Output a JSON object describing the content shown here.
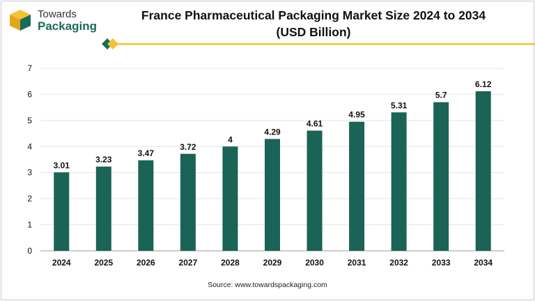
{
  "header": {
    "logo_line1": "Towards",
    "logo_line2": "Packaging",
    "title_line1": "France Pharmaceutical Packaging Market Size 2024 to 2034",
    "title_line2": "(USD Billion)"
  },
  "source": "Source: www.towardspackaging.com",
  "colors": {
    "bar": "#1b6356",
    "brand_green": "#1b6b58",
    "brand_gold": "#f2c230",
    "grid": "#e3e3e3",
    "axis": "#999999"
  },
  "chart_data": {
    "type": "bar",
    "title": "France Pharmaceutical Packaging Market Size 2024 to 2034 (USD Billion)",
    "categories": [
      "2024",
      "2025",
      "2026",
      "2027",
      "2028",
      "2029",
      "2030",
      "2031",
      "2032",
      "2033",
      "2034"
    ],
    "values": [
      3.01,
      3.23,
      3.47,
      3.72,
      4,
      4.29,
      4.61,
      4.95,
      5.31,
      5.7,
      6.12
    ],
    "value_labels": [
      "3.01",
      "3.23",
      "3.47",
      "3.72",
      "4",
      "4.29",
      "4.61",
      "4.95",
      "5.31",
      "5.7",
      "6.12"
    ],
    "ylim": [
      0,
      7
    ],
    "yticks": [
      0,
      1,
      2,
      3,
      4,
      5,
      6,
      7
    ],
    "xlabel": "",
    "ylabel": "",
    "grid": true,
    "legend": "none"
  }
}
